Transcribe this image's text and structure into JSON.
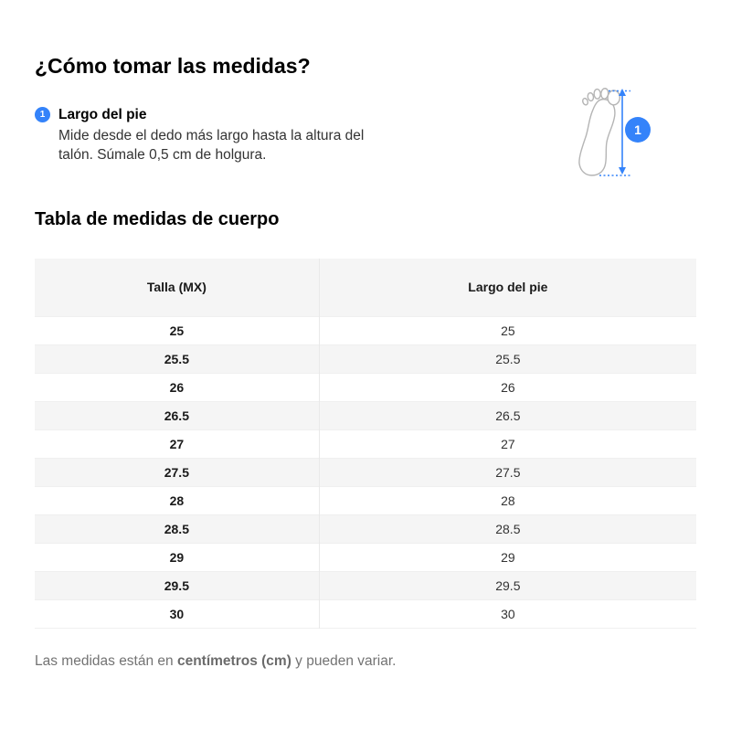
{
  "header": {
    "title": "¿Cómo tomar las medidas?"
  },
  "measure": {
    "step_number": "1",
    "label": "Largo del pie",
    "description": "Mide desde el dedo más largo hasta la altura del talón. Súmale 0,5 cm de holgura."
  },
  "diagram": {
    "badge": "1",
    "icon": "foot-sole-with-length-arrow"
  },
  "size_table": {
    "title": "Tabla de medidas de cuerpo",
    "columns": [
      "Talla (MX)",
      "Largo del pie"
    ],
    "rows": [
      [
        "25",
        "25"
      ],
      [
        "25.5",
        "25.5"
      ],
      [
        "26",
        "26"
      ],
      [
        "26.5",
        "26.5"
      ],
      [
        "27",
        "27"
      ],
      [
        "27.5",
        "27.5"
      ],
      [
        "28",
        "28"
      ],
      [
        "28.5",
        "28.5"
      ],
      [
        "29",
        "29"
      ],
      [
        "29.5",
        "29.5"
      ],
      [
        "30",
        "30"
      ]
    ]
  },
  "footnote": {
    "prefix": "Las medidas están en ",
    "bold": "centímetros (cm)",
    "suffix": " y pueden variar."
  },
  "colors": {
    "accent_blue": "#3483fa",
    "stripe_gray": "#f5f5f5",
    "row_border_gray": "#efefef",
    "column_border_gray": "#e9e9e9",
    "foot_outline_gray": "#b5b5b5",
    "text_primary": "#000000",
    "text_secondary": "#333333",
    "footnote_gray": "#737373"
  }
}
